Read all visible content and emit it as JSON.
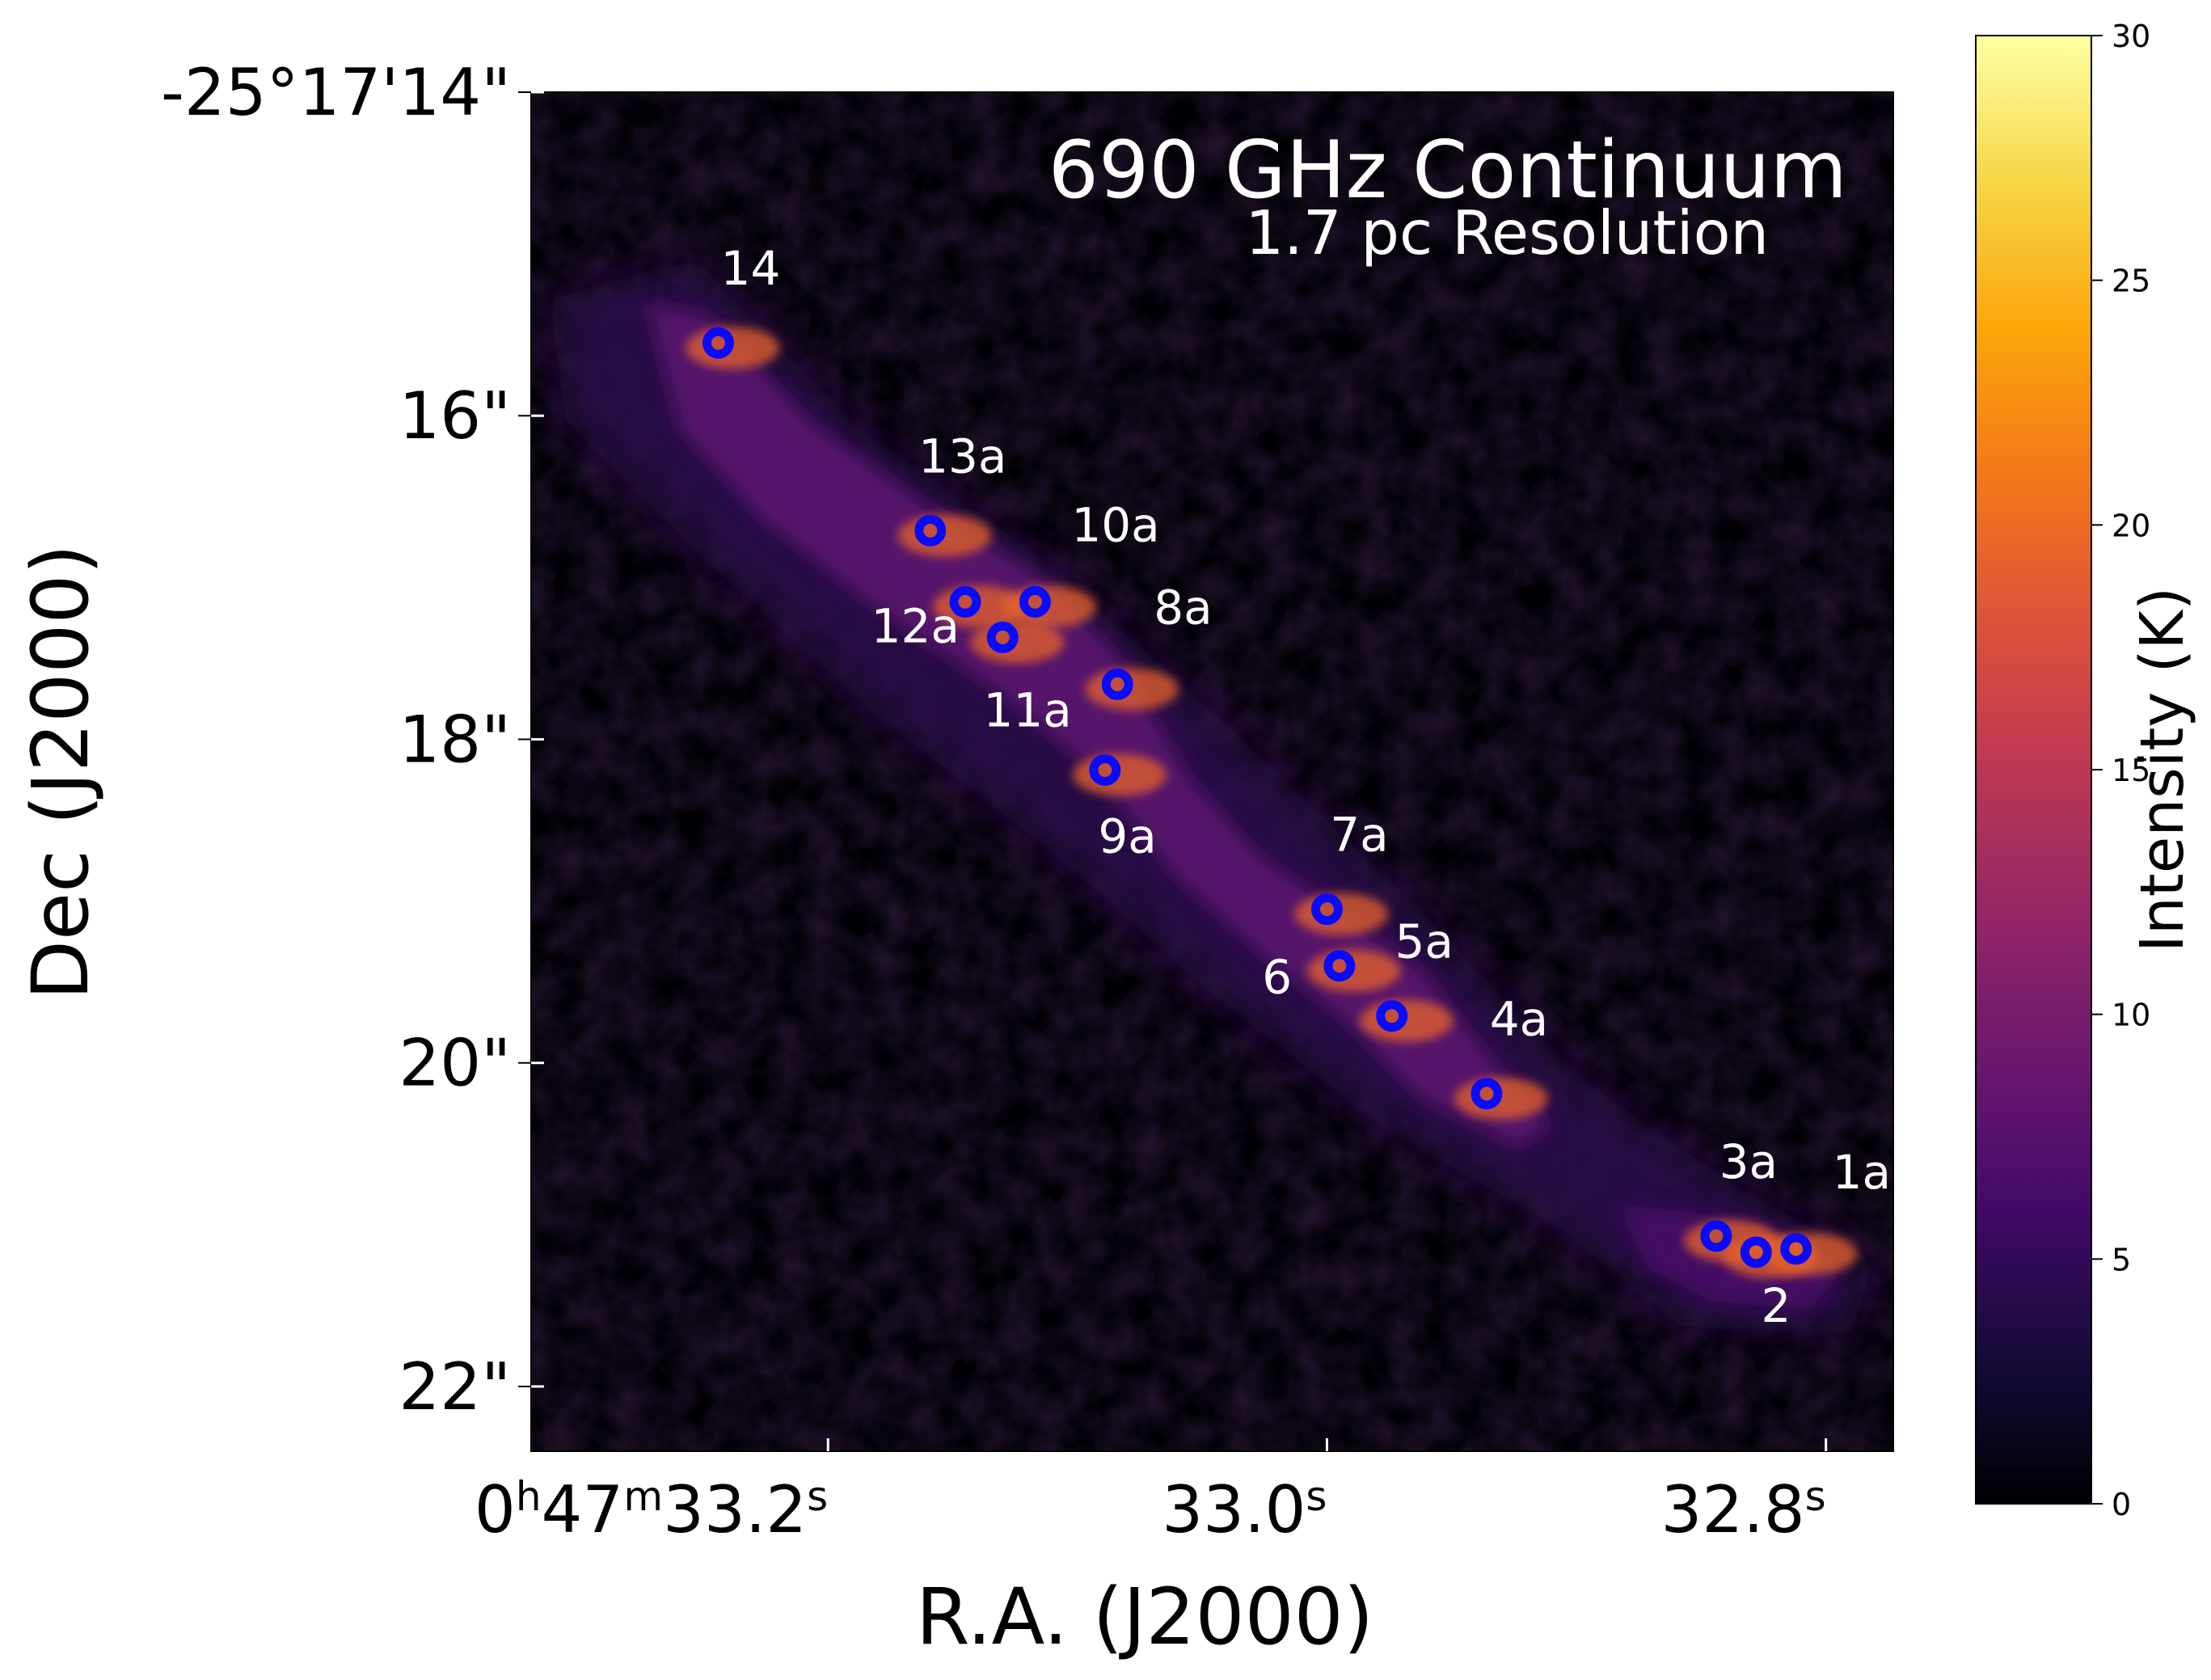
{
  "chart_data": {
    "type": "heatmap",
    "annotation_line1": "690 GHz Continuum",
    "annotation_line2": "1.7 pc Resolution",
    "xlabel": "R.A. (J2000)",
    "ylabel": "Dec (J2000)",
    "colorbar_label": "Intensity (K)",
    "colormap": "inferno",
    "marker_color": "#0a0aff",
    "colorbar_range": [
      0,
      30
    ],
    "colorbar_ticks": [
      "0",
      "5",
      "10",
      "15",
      "20",
      "25",
      "30"
    ],
    "x_range_seconds": [
      33.319,
      32.773
    ],
    "y_range_arcsec": [
      14.0,
      22.4
    ],
    "x_ticks": [
      {
        "value": 33.2,
        "prefix": "0",
        "h": "h",
        "mid": "47",
        "m": "m",
        "sec": "33.2",
        "s": "s"
      },
      {
        "value": 33.0,
        "prefix": "",
        "h": "",
        "mid": "",
        "m": "",
        "sec": "33.0",
        "s": "s"
      },
      {
        "value": 32.8,
        "prefix": "",
        "h": "",
        "mid": "",
        "m": "",
        "sec": "32.8",
        "s": "s"
      }
    ],
    "y_ticks": [
      {
        "value": 14.0,
        "label": "-25°17'14\""
      },
      {
        "value": 16.0,
        "label": "16\""
      },
      {
        "value": 18.0,
        "label": "18\""
      },
      {
        "value": 20.0,
        "label": "20\""
      },
      {
        "value": 22.0,
        "label": "22\""
      }
    ],
    "sources": [
      {
        "label": "14",
        "ra_s": 33.244,
        "dec_as": 15.55,
        "label_pos": "above"
      },
      {
        "label": "13a",
        "ra_s": 33.159,
        "dec_as": 16.71,
        "label_pos": "above"
      },
      {
        "label": "12a",
        "ra_s": 33.145,
        "dec_as": 17.15,
        "label_pos": "none"
      },
      {
        "label": "",
        "ra_s": 33.13,
        "dec_as": 17.37,
        "label_pos": "none"
      },
      {
        "label": "10a",
        "ra_s": 33.117,
        "dec_as": 17.15,
        "label_pos": "above-right"
      },
      {
        "label": "8a",
        "ra_s": 33.084,
        "dec_as": 17.66,
        "label_pos": "above-right"
      },
      {
        "label": "11a",
        "ra_s": 33.089,
        "dec_as": 18.19,
        "label_pos": "none"
      },
      {
        "label": "7a",
        "ra_s": 33.0,
        "dec_as": 19.05,
        "label_pos": "above"
      },
      {
        "label": "6",
        "ra_s": 32.995,
        "dec_as": 19.4,
        "label_pos": "none"
      },
      {
        "label": "5a",
        "ra_s": 32.974,
        "dec_as": 19.71,
        "label_pos": "above"
      },
      {
        "label": "4a",
        "ra_s": 32.936,
        "dec_as": 20.19,
        "label_pos": "above"
      },
      {
        "label": "3a",
        "ra_s": 32.844,
        "dec_as": 21.07,
        "label_pos": "above"
      },
      {
        "label": "2",
        "ra_s": 32.828,
        "dec_as": 21.17,
        "label_pos": "none"
      },
      {
        "label": "1a",
        "ra_s": 32.812,
        "dec_as": 21.15,
        "label_pos": "above-right"
      }
    ],
    "free_labels": [
      {
        "label": "12a",
        "ra_s": 33.165,
        "dec_as": 17.4
      },
      {
        "label": "11a",
        "ra_s": 33.12,
        "dec_as": 17.92
      },
      {
        "label": "9a",
        "ra_s": 33.08,
        "dec_as": 18.7
      },
      {
        "label": "6",
        "ra_s": 33.02,
        "dec_as": 19.57
      },
      {
        "label": "2",
        "ra_s": 32.82,
        "dec_as": 21.6
      }
    ]
  }
}
